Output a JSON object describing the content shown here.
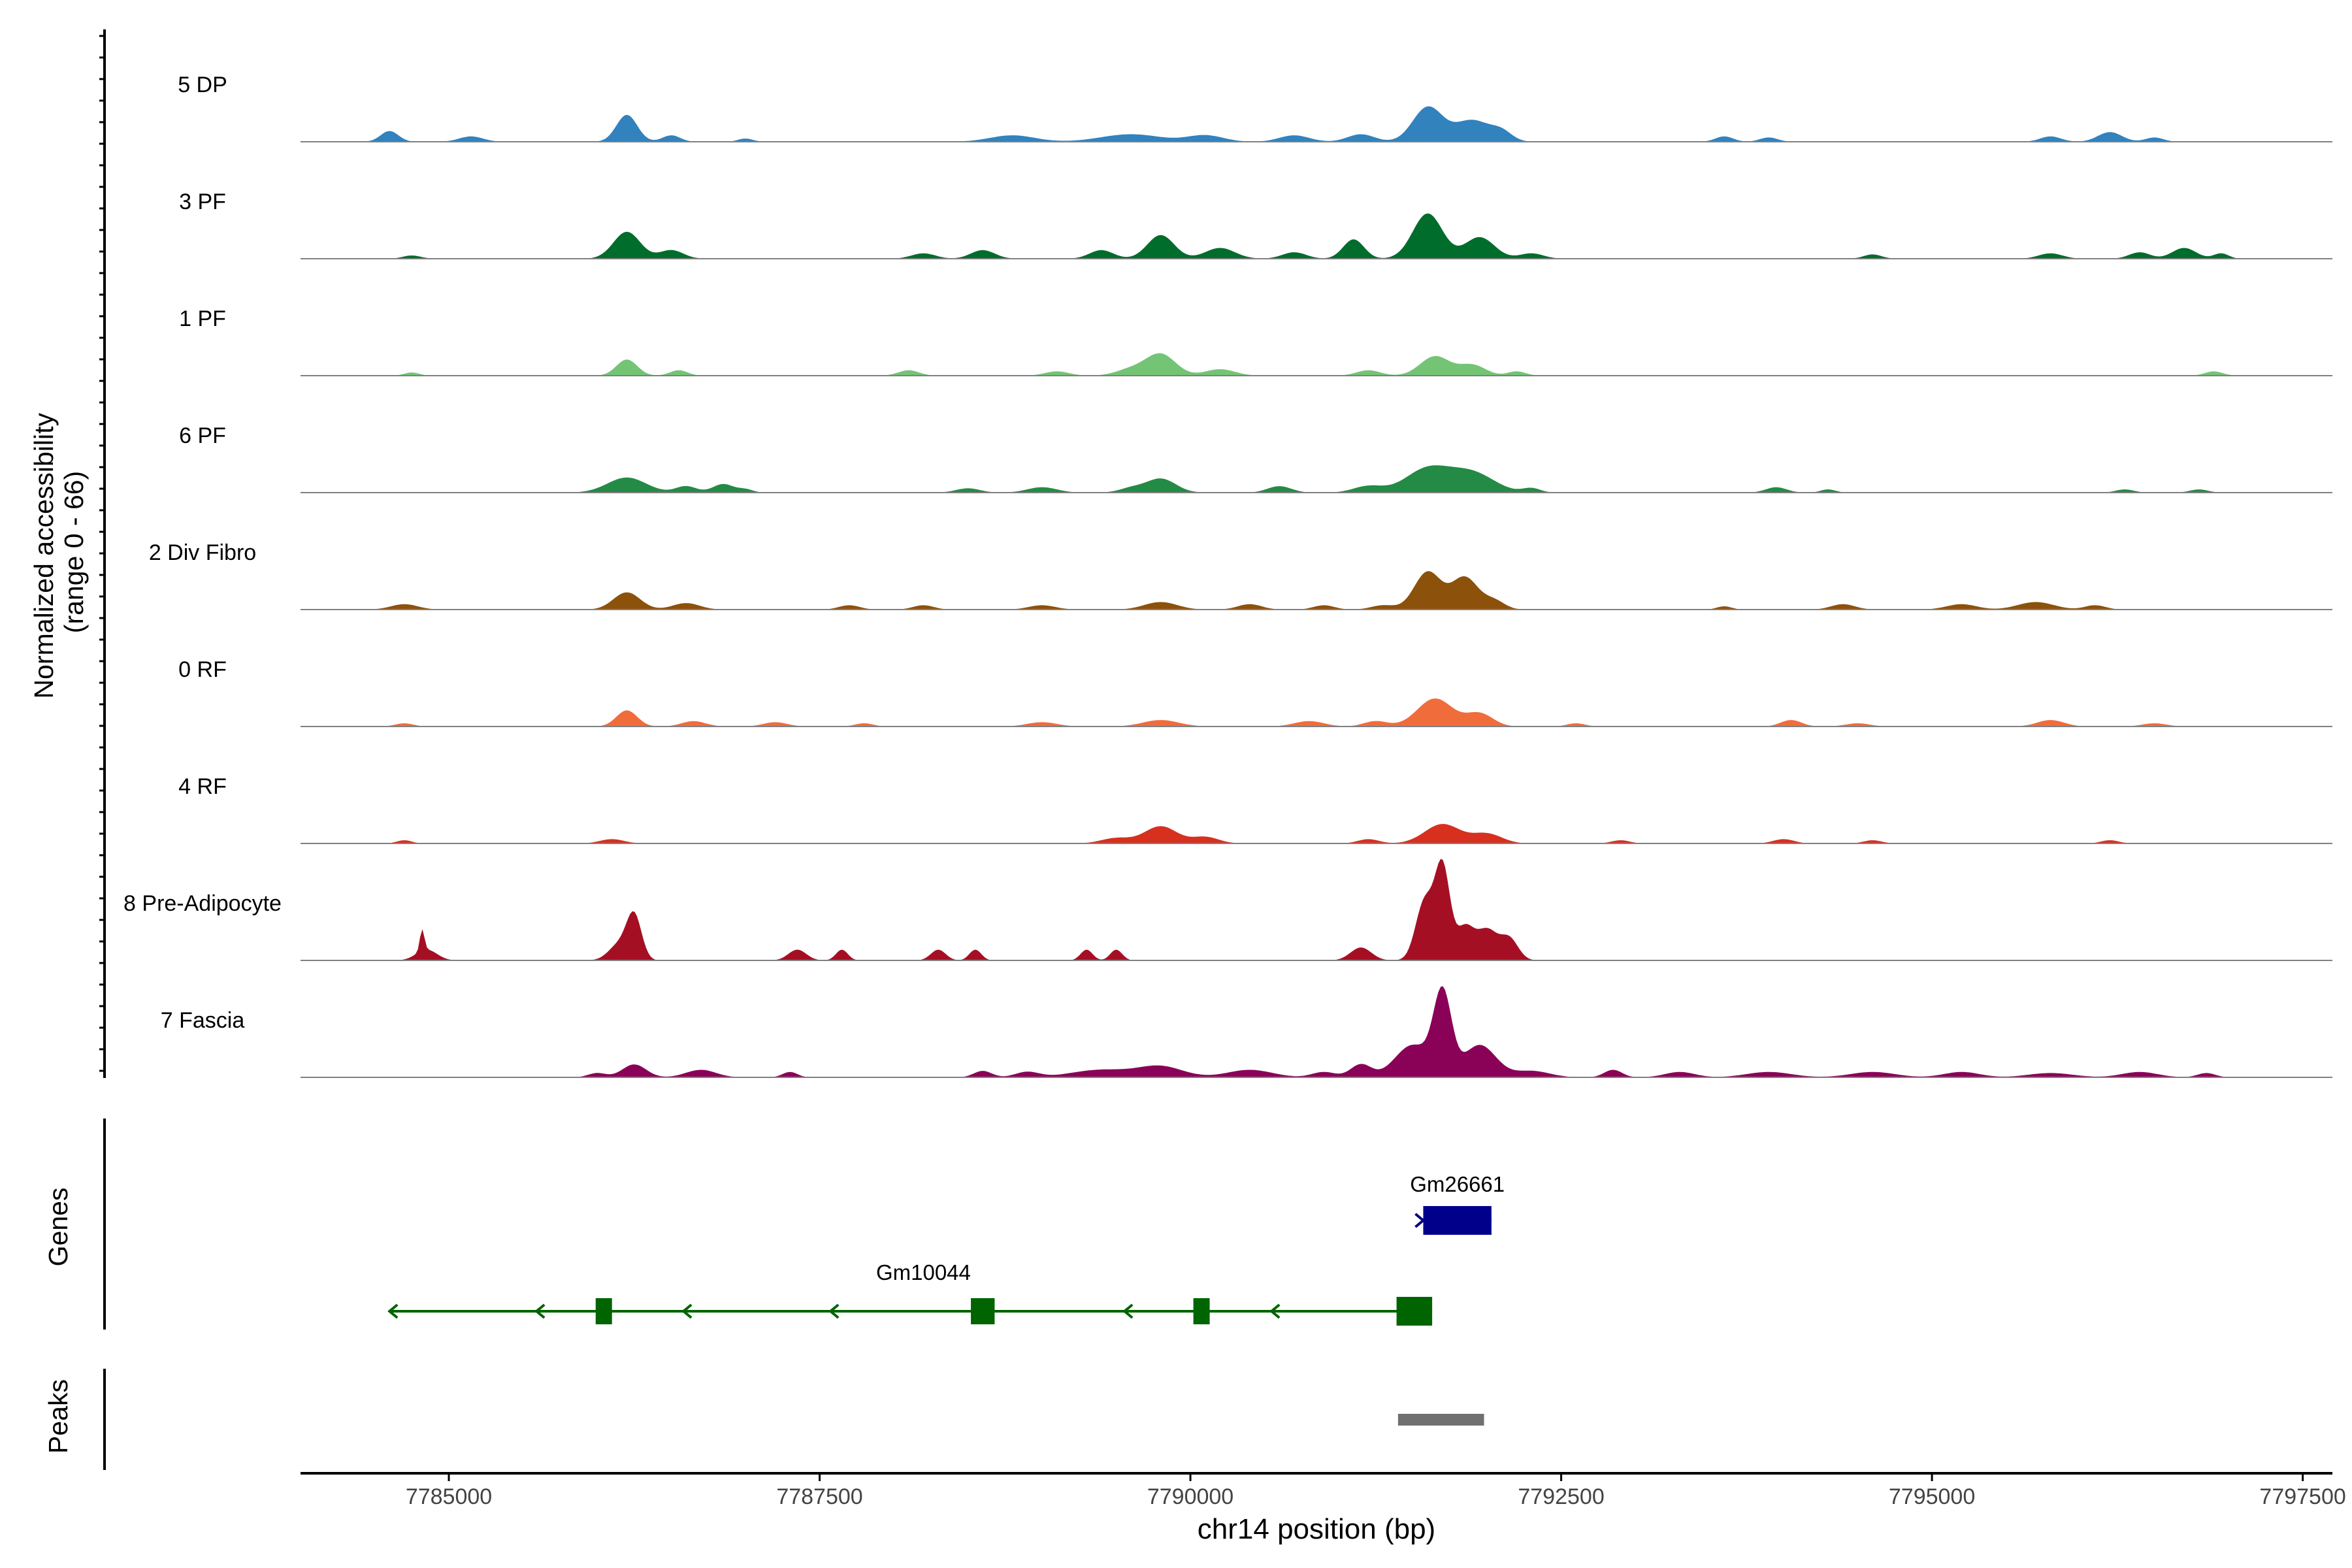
{
  "chart_data": {
    "type": "area",
    "title": "",
    "xlabel": "chr14 position (bp)",
    "ylabel": "Normalized accessibility\n(range 0 - 66)",
    "ylim": [
      0,
      66
    ],
    "xlim": [
      7784000,
      7797700
    ],
    "x_ticks": [
      7785000,
      7787500,
      7790000,
      7792500,
      7795000,
      7797500
    ],
    "x_tick_labels": [
      "7785000",
      "7787500",
      "7790000",
      "7792500",
      "7795000",
      "7797500"
    ],
    "tracks": [
      {
        "name": "5 DP",
        "color": "#3182BD",
        "peaks": [
          [
            7784600,
            0.1,
            60
          ],
          [
            7785150,
            0.05,
            80
          ],
          [
            7786200,
            0.25,
            70
          ],
          [
            7786500,
            0.06,
            60
          ],
          [
            7787000,
            0.03,
            50
          ],
          [
            7788800,
            0.06,
            150
          ],
          [
            7789600,
            0.07,
            200
          ],
          [
            7790100,
            0.06,
            120
          ],
          [
            7790700,
            0.06,
            100
          ],
          [
            7791150,
            0.07,
            90
          ],
          [
            7791600,
            0.32,
            100
          ],
          [
            7791900,
            0.2,
            120
          ],
          [
            7792100,
            0.08,
            70
          ],
          [
            7793600,
            0.05,
            60
          ],
          [
            7793900,
            0.04,
            60
          ],
          [
            7795800,
            0.05,
            70
          ],
          [
            7796200,
            0.09,
            80
          ],
          [
            7796500,
            0.04,
            60
          ]
        ]
      },
      {
        "name": "3 PF",
        "color": "#006D2C",
        "peaks": [
          [
            7784750,
            0.03,
            60
          ],
          [
            7786200,
            0.25,
            90
          ],
          [
            7786500,
            0.08,
            80
          ],
          [
            7788200,
            0.05,
            80
          ],
          [
            7788600,
            0.08,
            80
          ],
          [
            7789400,
            0.08,
            80
          ],
          [
            7789800,
            0.22,
            90
          ],
          [
            7790200,
            0.1,
            100
          ],
          [
            7790700,
            0.06,
            80
          ],
          [
            7791100,
            0.18,
            70
          ],
          [
            7791600,
            0.42,
            100
          ],
          [
            7791950,
            0.2,
            100
          ],
          [
            7792300,
            0.05,
            80
          ],
          [
            7794600,
            0.04,
            60
          ],
          [
            7795800,
            0.05,
            80
          ],
          [
            7796400,
            0.06,
            70
          ],
          [
            7796700,
            0.1,
            80
          ],
          [
            7796950,
            0.05,
            50
          ]
        ]
      },
      {
        "name": "1 PF",
        "color": "#74C476",
        "peaks": [
          [
            7784750,
            0.03,
            50
          ],
          [
            7786200,
            0.15,
            70
          ],
          [
            7786550,
            0.05,
            60
          ],
          [
            7788100,
            0.05,
            70
          ],
          [
            7789100,
            0.04,
            80
          ],
          [
            7789600,
            0.06,
            100
          ],
          [
            7789800,
            0.2,
            100
          ],
          [
            7790200,
            0.06,
            100
          ],
          [
            7791200,
            0.05,
            80
          ],
          [
            7791650,
            0.18,
            100
          ],
          [
            7791900,
            0.1,
            90
          ],
          [
            7792200,
            0.04,
            60
          ],
          [
            7796900,
            0.04,
            60
          ]
        ]
      },
      {
        "name": "6 PF",
        "color": "#238B45",
        "peaks": [
          [
            7786200,
            0.14,
            130
          ],
          [
            7786600,
            0.06,
            70
          ],
          [
            7786850,
            0.08,
            70
          ],
          [
            7787000,
            0.03,
            50
          ],
          [
            7788500,
            0.04,
            80
          ],
          [
            7789000,
            0.05,
            100
          ],
          [
            7789600,
            0.04,
            80
          ],
          [
            7789800,
            0.13,
            100
          ],
          [
            7790600,
            0.06,
            80
          ],
          [
            7791200,
            0.06,
            100
          ],
          [
            7791600,
            0.22,
            150
          ],
          [
            7791900,
            0.18,
            150
          ],
          [
            7792300,
            0.04,
            60
          ],
          [
            7793950,
            0.05,
            70
          ],
          [
            7794300,
            0.03,
            50
          ],
          [
            7796300,
            0.03,
            60
          ],
          [
            7796800,
            0.03,
            60
          ]
        ]
      },
      {
        "name": "2 Div Fibro",
        "color": "#8C510A",
        "peaks": [
          [
            7784700,
            0.05,
            90
          ],
          [
            7786200,
            0.16,
            90
          ],
          [
            7786600,
            0.06,
            90
          ],
          [
            7787700,
            0.04,
            70
          ],
          [
            7788200,
            0.04,
            70
          ],
          [
            7789000,
            0.04,
            90
          ],
          [
            7789800,
            0.07,
            110
          ],
          [
            7790400,
            0.05,
            80
          ],
          [
            7790900,
            0.04,
            70
          ],
          [
            7791300,
            0.04,
            80
          ],
          [
            7791600,
            0.35,
            90
          ],
          [
            7791850,
            0.3,
            90
          ],
          [
            7792050,
            0.08,
            70
          ],
          [
            7793600,
            0.03,
            50
          ],
          [
            7794400,
            0.05,
            80
          ],
          [
            7795200,
            0.05,
            100
          ],
          [
            7795700,
            0.07,
            120
          ],
          [
            7796100,
            0.04,
            70
          ]
        ]
      },
      {
        "name": "0 RF",
        "color": "#F16C3B",
        "peaks": [
          [
            7784700,
            0.03,
            60
          ],
          [
            7786200,
            0.15,
            70
          ],
          [
            7786650,
            0.05,
            80
          ],
          [
            7787200,
            0.04,
            80
          ],
          [
            7787800,
            0.03,
            60
          ],
          [
            7789000,
            0.04,
            100
          ],
          [
            7789800,
            0.06,
            120
          ],
          [
            7790800,
            0.05,
            100
          ],
          [
            7791250,
            0.05,
            80
          ],
          [
            7791650,
            0.26,
            120
          ],
          [
            7791950,
            0.12,
            90
          ],
          [
            7792600,
            0.03,
            60
          ],
          [
            7794050,
            0.06,
            70
          ],
          [
            7794500,
            0.03,
            80
          ],
          [
            7795800,
            0.06,
            90
          ],
          [
            7796500,
            0.03,
            80
          ]
        ]
      },
      {
        "name": "4 RF",
        "color": "#D7301F",
        "peaks": [
          [
            7784700,
            0.03,
            50
          ],
          [
            7786100,
            0.04,
            80
          ],
          [
            7789500,
            0.05,
            100
          ],
          [
            7789800,
            0.16,
            110
          ],
          [
            7790100,
            0.06,
            90
          ],
          [
            7791200,
            0.04,
            70
          ],
          [
            7791700,
            0.18,
            120
          ],
          [
            7792000,
            0.09,
            100
          ],
          [
            7792900,
            0.03,
            60
          ],
          [
            7794000,
            0.04,
            70
          ],
          [
            7794600,
            0.03,
            60
          ],
          [
            7796200,
            0.03,
            60
          ]
        ]
      },
      {
        "name": "8 Pre-Adipocyte",
        "color": "#A50F24",
        "peaks": [
          [
            7784850,
            0.1,
            70
          ],
          [
            7784820,
            0.2,
            15
          ],
          [
            7786150,
            0.15,
            70
          ],
          [
            7786250,
            0.4,
            50
          ],
          [
            7787350,
            0.1,
            60
          ],
          [
            7787650,
            0.1,
            40
          ],
          [
            7788300,
            0.1,
            50
          ],
          [
            7788550,
            0.1,
            40
          ],
          [
            7789300,
            0.1,
            40
          ],
          [
            7789500,
            0.1,
            40
          ],
          [
            7791150,
            0.12,
            70
          ],
          [
            7791580,
            0.55,
            60
          ],
          [
            7791700,
            0.85,
            50
          ],
          [
            7791850,
            0.3,
            60
          ],
          [
            7792000,
            0.28,
            70
          ],
          [
            7792150,
            0.2,
            60
          ]
        ]
      },
      {
        "name": "7 Fascia",
        "color": "#8A0257",
        "peaks": [
          [
            7786000,
            0.04,
            60
          ],
          [
            7786250,
            0.12,
            80
          ],
          [
            7786700,
            0.07,
            100
          ],
          [
            7787300,
            0.05,
            50
          ],
          [
            7788600,
            0.06,
            60
          ],
          [
            7788900,
            0.05,
            80
          ],
          [
            7789400,
            0.07,
            200
          ],
          [
            7789800,
            0.1,
            150
          ],
          [
            7790400,
            0.07,
            150
          ],
          [
            7790900,
            0.05,
            80
          ],
          [
            7791150,
            0.12,
            70
          ],
          [
            7791500,
            0.3,
            120
          ],
          [
            7791700,
            0.75,
            60
          ],
          [
            7791950,
            0.3,
            110
          ],
          [
            7792300,
            0.06,
            120
          ],
          [
            7792850,
            0.07,
            60
          ],
          [
            7793300,
            0.05,
            100
          ],
          [
            7793900,
            0.05,
            150
          ],
          [
            7794600,
            0.05,
            150
          ],
          [
            7795200,
            0.05,
            120
          ],
          [
            7795800,
            0.04,
            150
          ],
          [
            7796400,
            0.05,
            120
          ],
          [
            7796850,
            0.04,
            60
          ]
        ]
      }
    ],
    "genes": [
      {
        "name": "Gm26661",
        "strand": "+",
        "start": 7791570,
        "end": 7792030,
        "color": "#00008B",
        "exons": [
          [
            7791570,
            7792030
          ]
        ]
      },
      {
        "name": "Gm10044",
        "strand": "-",
        "start": 7784600,
        "end": 7791630,
        "color": "#006400",
        "exons": [
          [
            7785990,
            7786100
          ],
          [
            7788520,
            7788680
          ],
          [
            7790020,
            7790130
          ],
          [
            7791390,
            7791630
          ]
        ]
      }
    ],
    "peaks": [
      [
        7791400,
        7791980
      ]
    ],
    "panel_labels": {
      "genes": "Genes",
      "peaks": "Peaks"
    },
    "peak_color": "#707070"
  }
}
